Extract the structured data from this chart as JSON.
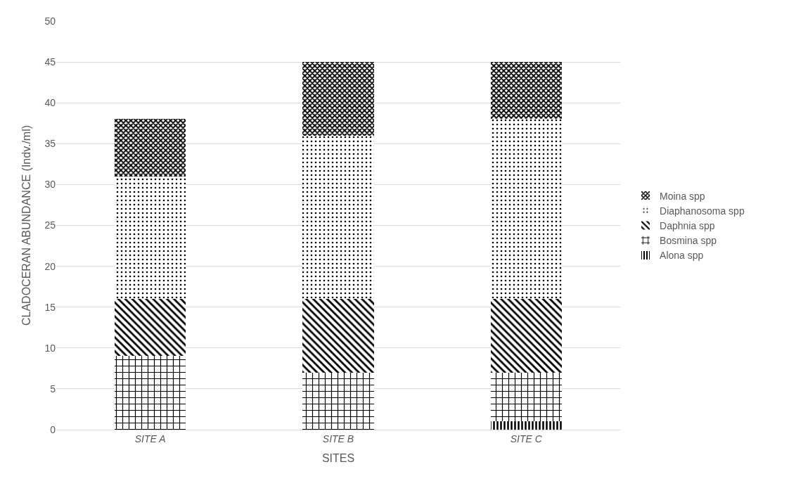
{
  "chart_data": {
    "type": "bar",
    "stacked": true,
    "xlabel": "SITES",
    "ylabel": "CLADOCERAN ABUNDANCE (Indv./ml)",
    "categories": [
      "SITE A",
      "SITE B",
      "SITE C"
    ],
    "series": [
      {
        "name": "Alona spp",
        "color": "#000000",
        "values": [
          0,
          0,
          1
        ]
      },
      {
        "name": "Bosmina spp",
        "color": "#000000",
        "values": [
          9,
          7,
          6
        ]
      },
      {
        "name": "Daphnia spp",
        "color": "#000000",
        "values": [
          7,
          9,
          9
        ]
      },
      {
        "name": "Diaphanosoma spp",
        "color": "#000000",
        "values": [
          15,
          20,
          22
        ]
      },
      {
        "name": "Moina spp",
        "color": "#000000",
        "values": [
          7,
          9,
          7
        ]
      }
    ],
    "ylim": [
      0,
      50
    ],
    "yticks": [
      0,
      5,
      10,
      15,
      20,
      25,
      30,
      35,
      40,
      45,
      50
    ],
    "grid": "y",
    "legend": "right"
  }
}
